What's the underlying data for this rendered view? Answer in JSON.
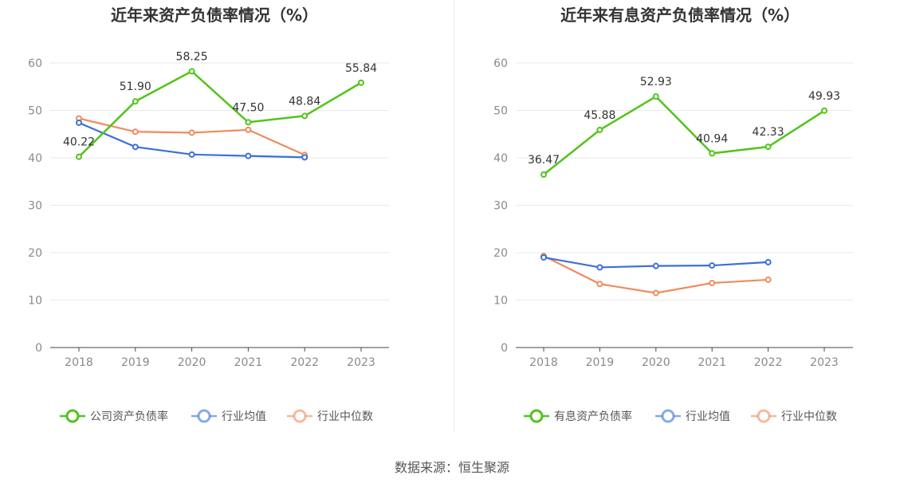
{
  "source": "数据来源：恒生聚源",
  "colors": {
    "company": "#52c41a",
    "avg": "#3a70d8",
    "median": "#f08a5d",
    "grid": "#e8e8ee",
    "axis": "#444444"
  },
  "chart_data": [
    {
      "type": "line",
      "title": "近年来资产负债率情况（%）",
      "categories": [
        "2018",
        "2019",
        "2020",
        "2021",
        "2022",
        "2023"
      ],
      "ylim": [
        0,
        60
      ],
      "yticks": [
        "0",
        "10",
        "20",
        "30",
        "40",
        "50",
        "60"
      ],
      "grid": true,
      "legend_position": "bottom",
      "series": [
        {
          "name": "公司资产负债率",
          "values": [
            40.22,
            51.9,
            58.25,
            47.5,
            48.84,
            55.84
          ],
          "labels": [
            "40.22",
            "51.90",
            "58.25",
            "47.50",
            "48.84",
            "55.84"
          ]
        },
        {
          "name": "行业均值",
          "values": [
            47.4,
            42.3,
            40.7,
            40.4,
            40.1,
            null
          ]
        },
        {
          "name": "行业中位数",
          "values": [
            48.3,
            45.5,
            45.3,
            45.9,
            40.6,
            null
          ]
        }
      ]
    },
    {
      "type": "line",
      "title": "近年来有息资产负债率情况（%）",
      "categories": [
        "2018",
        "2019",
        "2020",
        "2021",
        "2022",
        "2023"
      ],
      "ylim": [
        0,
        60
      ],
      "yticks": [
        "0",
        "10",
        "20",
        "30",
        "40",
        "50",
        "60"
      ],
      "grid": true,
      "legend_position": "bottom",
      "series": [
        {
          "name": "有息资产负债率",
          "values": [
            36.47,
            45.88,
            52.93,
            40.94,
            42.33,
            49.93
          ],
          "labels": [
            "36.47",
            "45.88",
            "52.93",
            "40.94",
            "42.33",
            "49.93"
          ]
        },
        {
          "name": "行业均值",
          "values": [
            19.0,
            16.9,
            17.2,
            17.3,
            18.0,
            null
          ]
        },
        {
          "name": "行业中位数",
          "values": [
            19.3,
            13.4,
            11.5,
            13.6,
            14.3,
            null
          ]
        }
      ]
    }
  ]
}
